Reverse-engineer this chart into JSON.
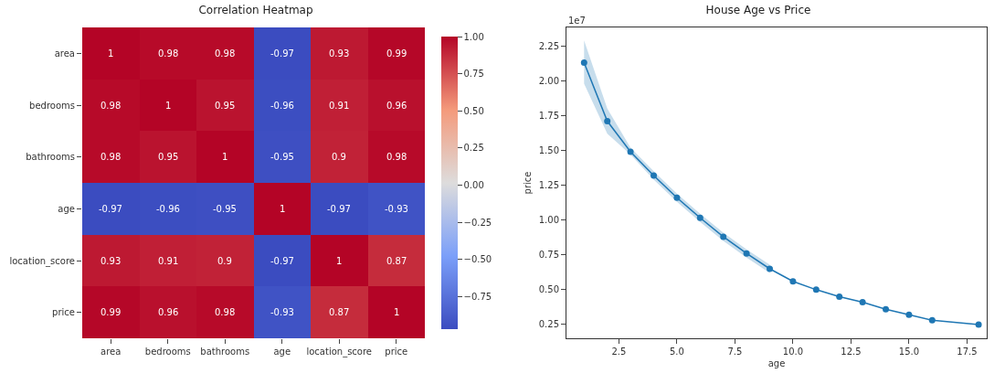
{
  "chart_data": [
    {
      "type": "heatmap",
      "title": "Correlation Heatmap",
      "categories": [
        "area",
        "bedrooms",
        "bathrooms",
        "age",
        "location_score",
        "price"
      ],
      "y_categories": [
        "area",
        "bedrooms",
        "bathrooms",
        "age",
        "location_score",
        "price"
      ],
      "cells": [
        [
          1,
          0.98,
          0.98,
          -0.97,
          0.93,
          0.99
        ],
        [
          0.98,
          1,
          0.95,
          -0.96,
          0.91,
          0.96
        ],
        [
          0.98,
          0.95,
          1,
          -0.95,
          0.9,
          0.98
        ],
        [
          -0.97,
          -0.96,
          -0.95,
          1,
          -0.97,
          -0.93
        ],
        [
          0.93,
          0.91,
          0.9,
          -0.97,
          1,
          0.87
        ],
        [
          0.99,
          0.96,
          0.98,
          -0.93,
          0.87,
          1
        ]
      ],
      "data_labels": true,
      "clim": [
        -0.97,
        1
      ],
      "cticks": [
        {
          "value": -0.75,
          "label": "−0.75"
        },
        {
          "value": -0.5,
          "label": "−0.50"
        },
        {
          "value": -0.25,
          "label": "−0.25"
        },
        {
          "value": 0,
          "label": "0.00"
        },
        {
          "value": 0.25,
          "label": "0.25"
        },
        {
          "value": 0.5,
          "label": "0.50"
        },
        {
          "value": 0.75,
          "label": "0.75"
        },
        {
          "value": 1,
          "label": "1.00"
        }
      ]
    },
    {
      "type": "line",
      "title": "House Age vs Price",
      "xlabel": "age",
      "ylabel": "price",
      "marker": "circle",
      "annotations": [
        "1e7"
      ],
      "x": [
        1,
        2,
        3,
        4,
        5,
        6,
        7,
        8,
        9,
        10,
        11,
        12,
        13,
        14,
        15,
        16,
        18
      ],
      "series": [
        {
          "color": "#1f77b4",
          "values": [
            2.13,
            1.71,
            1.49,
            1.32,
            1.16,
            1.016,
            0.88,
            0.76,
            0.65,
            0.56,
            0.5,
            0.45,
            0.41,
            0.36,
            0.32,
            0.28,
            0.25
          ],
          "lower": [
            1.98,
            1.62,
            1.47,
            1.29,
            1.13,
            0.986,
            0.85,
            0.73,
            0.62,
            null,
            null,
            null,
            null,
            null,
            null,
            null,
            null
          ],
          "upper": [
            2.29,
            1.8,
            1.52,
            1.35,
            1.19,
            1.046,
            0.91,
            0.79,
            0.68,
            null,
            null,
            null,
            null,
            null,
            null,
            null,
            null
          ]
        }
      ],
      "xlim": [
        0.24,
        18.35
      ],
      "xticks": [
        {
          "value": 2.5,
          "label": "2.5"
        },
        {
          "value": 5,
          "label": "5.0"
        },
        {
          "value": 7.5,
          "label": "7.5"
        },
        {
          "value": 10,
          "label": "10.0"
        },
        {
          "value": 12.5,
          "label": "12.5"
        },
        {
          "value": 15,
          "label": "15.0"
        },
        {
          "value": 17.5,
          "label": "17.5"
        }
      ],
      "ylim": [
        0.151,
        2.383
      ],
      "yticks": [
        {
          "value": 0.25,
          "label": "0.25"
        },
        {
          "value": 0.5,
          "label": "0.50"
        },
        {
          "value": 0.75,
          "label": "0.75"
        },
        {
          "value": 1,
          "label": "1.00"
        },
        {
          "value": 1.25,
          "label": "1.25"
        },
        {
          "value": 1.5,
          "label": "1.50"
        },
        {
          "value": 1.75,
          "label": "1.75"
        },
        {
          "value": 2,
          "label": "2.00"
        },
        {
          "value": 2.25,
          "label": "2.25"
        }
      ]
    }
  ]
}
